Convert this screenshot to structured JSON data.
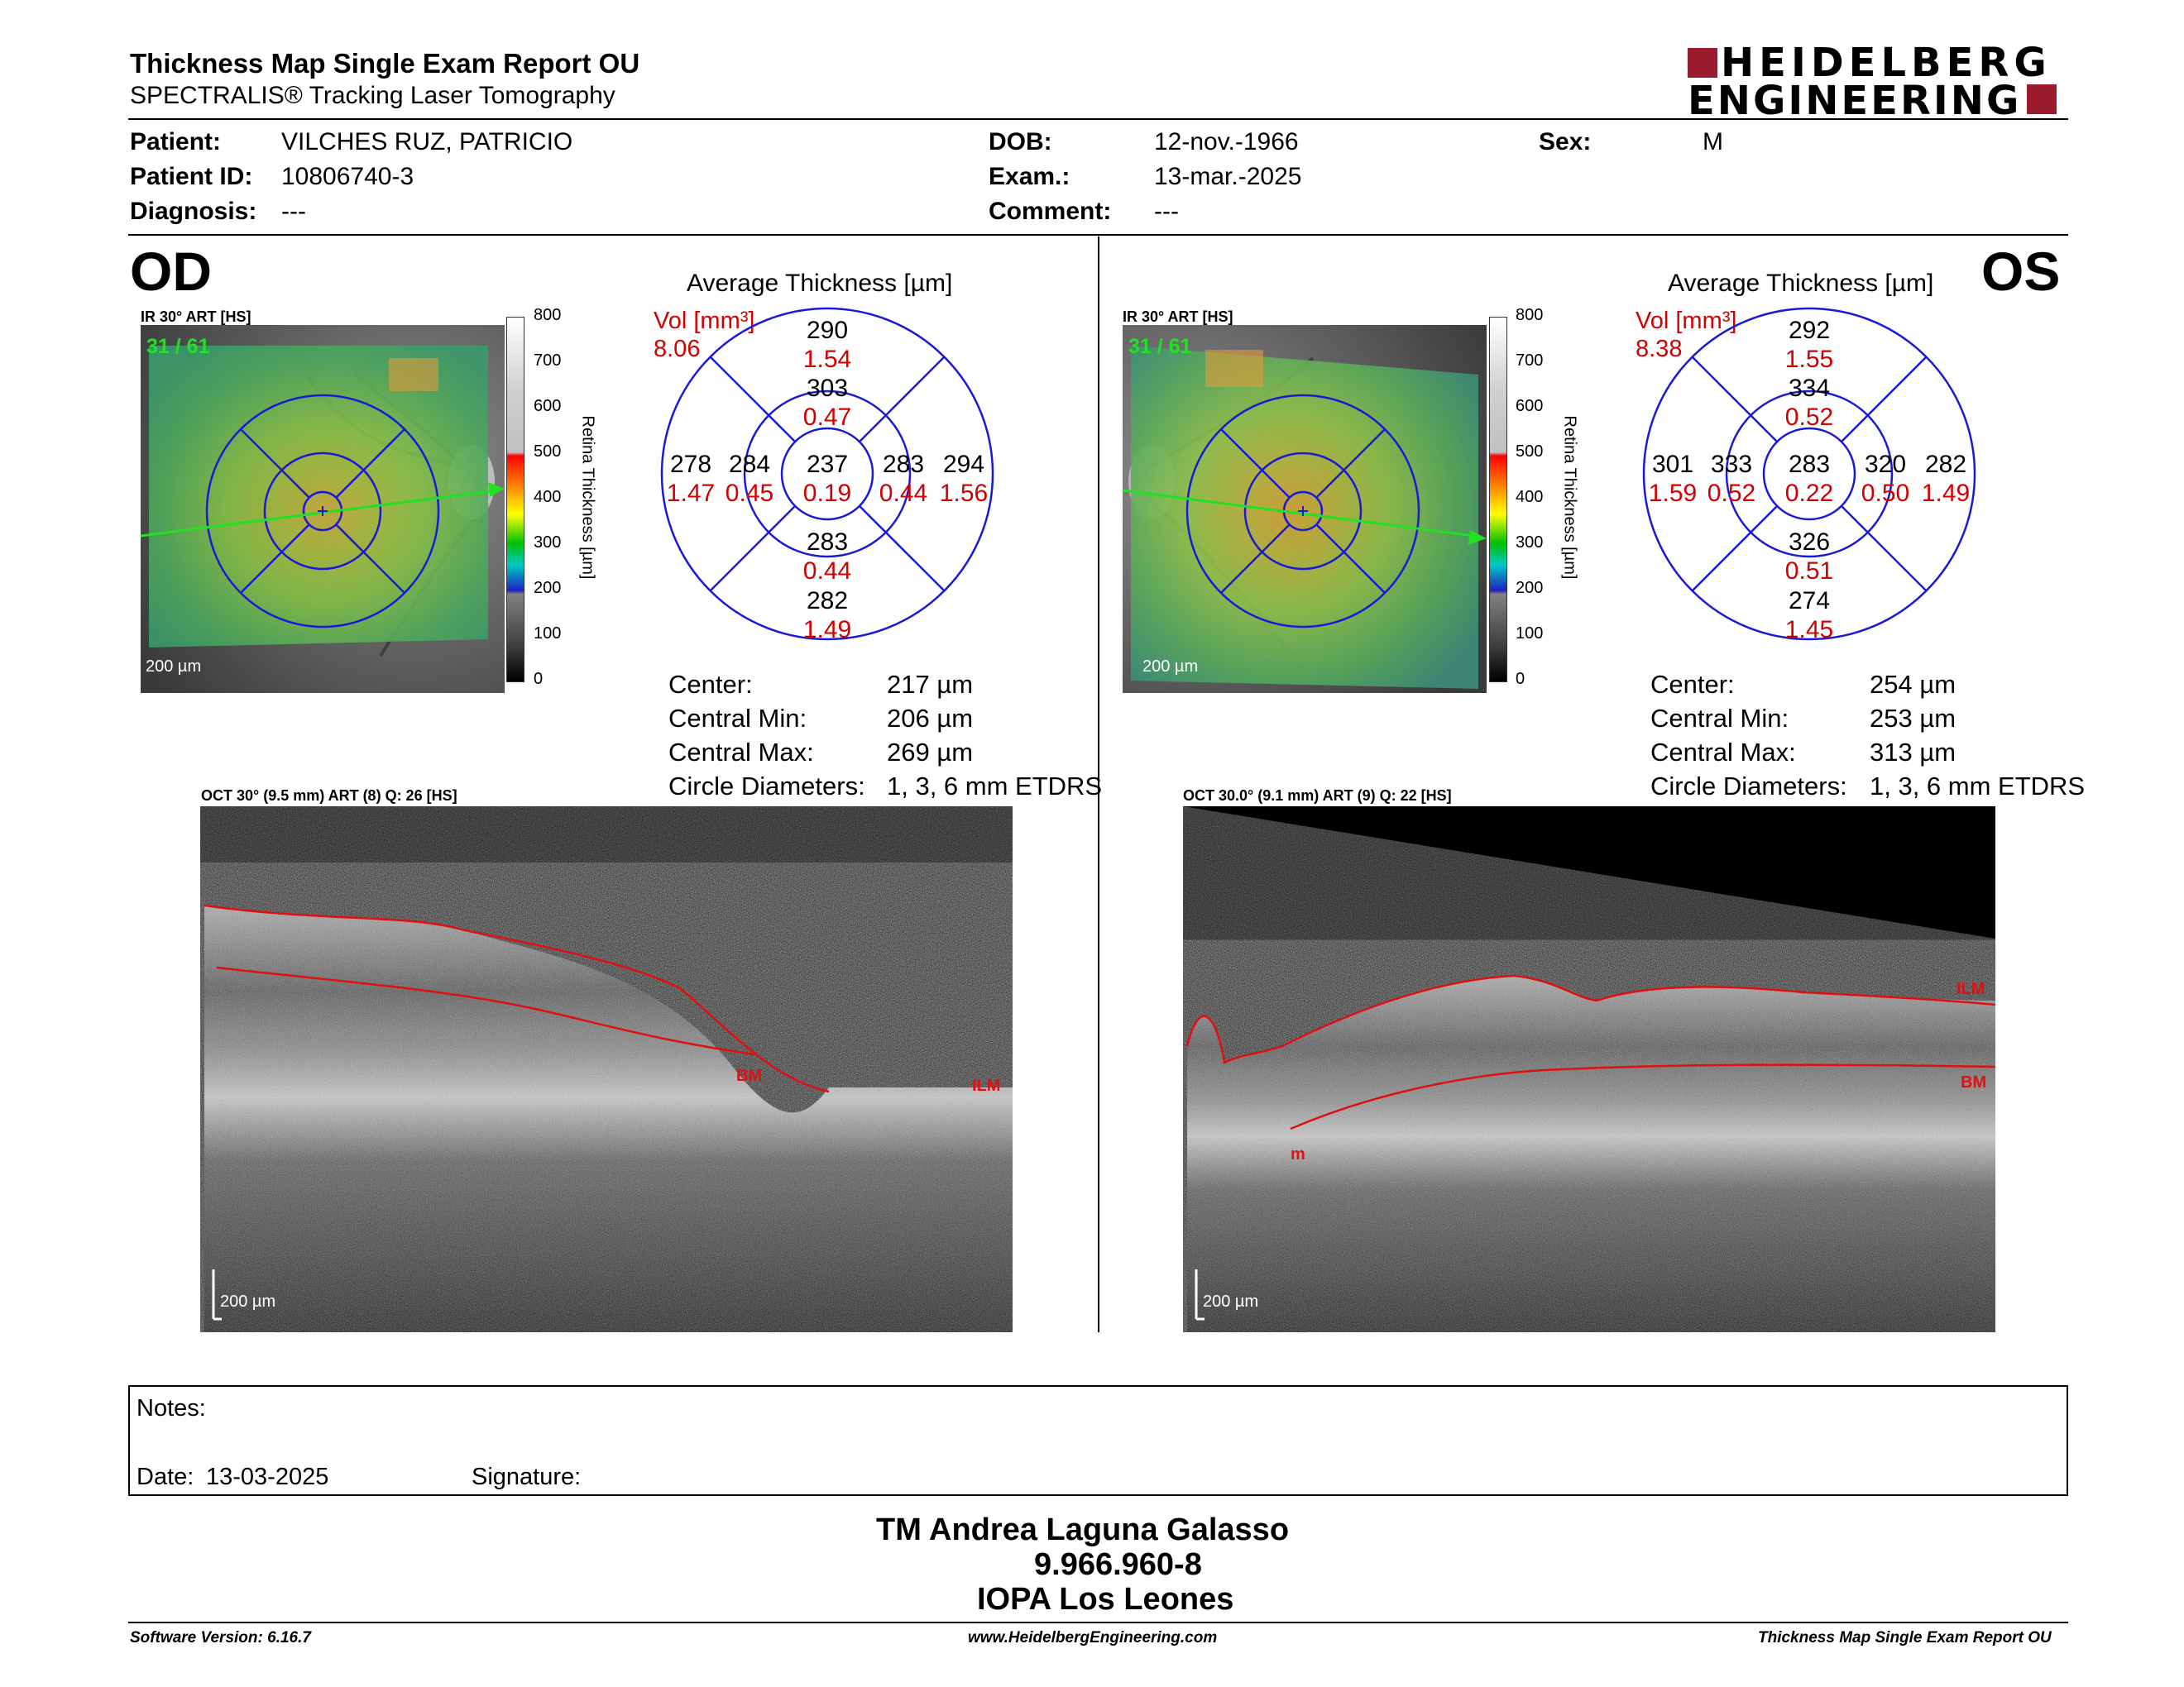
{
  "report": {
    "title": "Thickness Map Single Exam Report OU",
    "subtitle": "SPECTRALIS® Tracking Laser Tomography",
    "brand_line1": "HEIDELBERG",
    "brand_line2": "ENGINEERING",
    "brand_color": "#9b1b2e"
  },
  "patient": {
    "patient_label": "Patient:",
    "patient_value": "VILCHES RUZ, PATRICIO",
    "id_label": "Patient ID:",
    "id_value": "10806740-3",
    "diag_label": "Diagnosis:",
    "diag_value": "---",
    "dob_label": "DOB:",
    "dob_value": "12-nov.-1966",
    "exam_label": "Exam.:",
    "exam_value": "13-mar.-2025",
    "comment_label": "Comment:",
    "comment_value": "---",
    "sex_label": "Sex:",
    "sex_value": "M"
  },
  "colorbar": {
    "ticks": [
      "800",
      "700",
      "600",
      "500",
      "400",
      "300",
      "200",
      "100",
      "0"
    ],
    "label": "Retina Thickness [µm]"
  },
  "od": {
    "eye": "OD",
    "ir_caption": "IR 30° ART [HS]",
    "frame_counter": "31 / 61",
    "scale_ir": "200 µm",
    "avg_title": "Average Thickness [µm]",
    "vol_label": "Vol [mm³]",
    "vol_total": "8.06",
    "etdrs": {
      "center": [
        "237",
        "0.19"
      ],
      "inner_sup": [
        "303",
        "0.47"
      ],
      "inner_inf": [
        "283",
        "0.44"
      ],
      "inner_temp": [
        "284",
        "0.45"
      ],
      "inner_nasal": [
        "283",
        "0.44"
      ],
      "outer_sup": [
        "290",
        "1.54"
      ],
      "outer_inf": [
        "282",
        "1.49"
      ],
      "outer_temp": [
        "278",
        "1.47"
      ],
      "outer_nasal": [
        "294",
        "1.56"
      ]
    },
    "stats": [
      {
        "label": "Center:",
        "value": "217 µm"
      },
      {
        "label": "Central Min:",
        "value": "206 µm"
      },
      {
        "label": "Central Max:",
        "value": "269 µm"
      },
      {
        "label": "Circle Diameters:",
        "value": "1, 3, 6 mm ETDRS"
      }
    ],
    "oct_caption": "OCT 30° (9.5 mm) ART (8) Q: 26 [HS]",
    "ilm": "ILM",
    "bm": "BM",
    "scale_oct": "200 µm"
  },
  "os": {
    "eye": "OS",
    "ir_caption": "IR 30° ART [HS]",
    "frame_counter": "31 / 61",
    "scale_ir": "200 µm",
    "avg_title": "Average Thickness [µm]",
    "vol_label": "Vol [mm³]",
    "vol_total": "8.38",
    "etdrs": {
      "center": [
        "283",
        "0.22"
      ],
      "inner_sup": [
        "334",
        "0.52"
      ],
      "inner_inf": [
        "326",
        "0.51"
      ],
      "inner_temp": [
        "320",
        "0.50"
      ],
      "inner_nasal": [
        "333",
        "0.52"
      ],
      "outer_sup": [
        "292",
        "1.55"
      ],
      "outer_inf": [
        "274",
        "1.45"
      ],
      "outer_temp": [
        "282",
        "1.49"
      ],
      "outer_nasal": [
        "301",
        "1.59"
      ]
    },
    "stats": [
      {
        "label": "Center:",
        "value": "254 µm"
      },
      {
        "label": "Central Min:",
        "value": "253 µm"
      },
      {
        "label": "Central Max:",
        "value": "313 µm"
      },
      {
        "label": "Circle Diameters:",
        "value": "1, 3, 6 mm ETDRS"
      }
    ],
    "oct_caption": "OCT 30.0° (9.1 mm) ART (9) Q: 22 [HS]",
    "ilm": "ILM",
    "bm": "BM",
    "rnfl": "m",
    "scale_oct": "200 µm"
  },
  "notes": {
    "notes_label": "Notes:",
    "date_label": "Date:",
    "date_value": "13-03-2025",
    "signature_label": "Signature:"
  },
  "signer": {
    "name": "TM Andrea Laguna Galasso",
    "id": "9.966.960-8",
    "org": "IOPA Los Leones"
  },
  "footer": {
    "software": "Software Version: 6.16.7",
    "website": "www.HeidelbergEngineering.com",
    "report_name": "Thickness Map Single Exam Report OU"
  }
}
